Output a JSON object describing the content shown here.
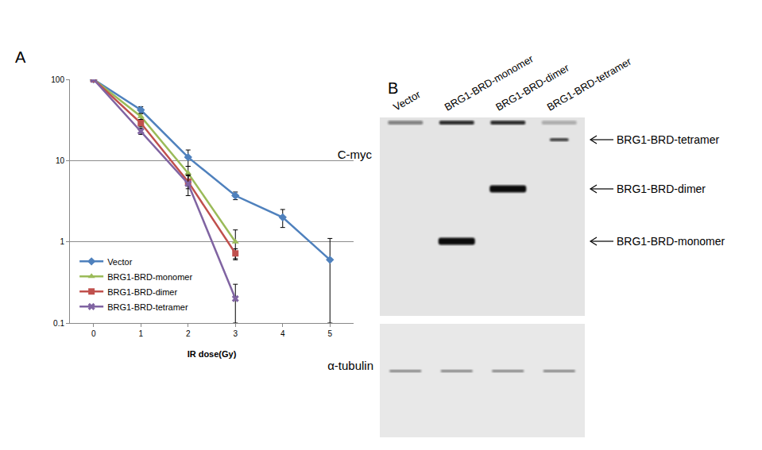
{
  "chart_data": {
    "type": "line",
    "x_label": "IR dose(Gy)",
    "x": [
      0,
      1,
      2,
      3,
      4,
      5
    ],
    "xlim": [
      -0.5,
      5.5
    ],
    "xticks": [
      0,
      1,
      2,
      3,
      4,
      5
    ],
    "log": "y",
    "ylim": [
      0.1,
      100
    ],
    "yticks": [
      0.1,
      1,
      10,
      100
    ],
    "grid": true,
    "legend": "lower left",
    "series": [
      {
        "name": "Vector",
        "color": "#4f81bd",
        "marker": "diamond",
        "values": [
          100,
          42,
          11,
          3.7,
          2.0,
          0.6
        ],
        "errors": [
          0,
          4,
          2.5,
          0.4,
          0.5,
          0.5
        ]
      },
      {
        "name": "BRG1-BRD-monomer",
        "color": "#9bbb59",
        "marker": "triangle-up",
        "values": [
          100,
          35,
          7,
          1.0,
          null,
          null
        ],
        "errors": [
          0,
          3,
          1.5,
          0.4,
          null,
          null
        ]
      },
      {
        "name": "BRG1-BRD-dimer",
        "color": "#c0504d",
        "marker": "square",
        "values": [
          100,
          29,
          5.5,
          0.72,
          null,
          null
        ],
        "errors": [
          0,
          3,
          1,
          0.1,
          null,
          null
        ]
      },
      {
        "name": "BRG1-BRD-tetramer",
        "color": "#8064a2",
        "marker": "x",
        "values": [
          100,
          23,
          5.2,
          0.2,
          null,
          null
        ],
        "errors": [
          0,
          2,
          1.5,
          0.1,
          null,
          null
        ]
      }
    ]
  },
  "panel_a_label": "A",
  "blot": {
    "panel_label": "B",
    "lanes": [
      "Vector",
      "BRG1-BRD-monomer",
      "BRG1-BRD-dimer",
      "BRG1-BRD-tetramer"
    ],
    "blots": [
      "C-myc",
      "α-tubulin"
    ],
    "band_labels": [
      "BRG1-BRD-tetramer",
      "BRG1-BRD-dimer",
      "BRG1-BRD-monomer"
    ]
  }
}
